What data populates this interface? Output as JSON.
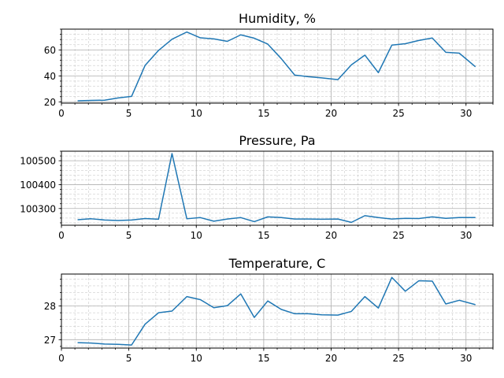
{
  "chart_data": [
    {
      "type": "line",
      "title": "Humidity, %",
      "xlim": [
        0,
        32
      ],
      "ylim": [
        19,
        76
      ],
      "x_ticks": [
        0,
        5,
        10,
        15,
        20,
        25,
        30
      ],
      "y_ticks": [
        20,
        40,
        60
      ],
      "grid": true,
      "color": "#1f77b4",
      "x": [
        1.2,
        2.2,
        3.2,
        4.2,
        5.2,
        6.2,
        7.2,
        8.2,
        9.3,
        10.3,
        11.3,
        12.3,
        13.3,
        14.3,
        15.3,
        16.3,
        17.3,
        18.3,
        19.3,
        20.5,
        21.5,
        22.5,
        23.5,
        24.5,
        25.5,
        26.5,
        27.5,
        28.5,
        29.5,
        30.7
      ],
      "y": [
        20.8,
        21.1,
        21.3,
        23,
        24.2,
        48,
        59.6,
        68.2,
        73.8,
        69.3,
        68.5,
        66.6,
        71.6,
        69,
        64.5,
        53.3,
        40.6,
        39.4,
        38.5,
        37.1,
        48.5,
        56,
        42.5,
        63.7,
        64.8,
        67.3,
        69.2,
        58.2,
        57.5,
        47
      ]
    },
    {
      "type": "line",
      "title": "Pressure, Pa",
      "xlim": [
        0,
        32
      ],
      "ylim": [
        100230,
        100540
      ],
      "x_ticks": [
        0,
        5,
        10,
        15,
        20,
        25,
        30
      ],
      "y_ticks": [
        100300,
        100400,
        100500
      ],
      "grid": true,
      "color": "#1f77b4",
      "x": [
        1.2,
        2.2,
        3.2,
        4.2,
        5.2,
        6.2,
        7.2,
        8.2,
        9.3,
        10.3,
        11.3,
        12.3,
        13.3,
        14.3,
        15.3,
        16.3,
        17.3,
        18.3,
        19.3,
        20.5,
        21.5,
        22.5,
        23.5,
        24.5,
        25.5,
        26.5,
        27.5,
        28.5,
        29.5,
        30.7
      ],
      "y": [
        100253,
        100257,
        100252,
        100250,
        100252,
        100258,
        100255,
        100530,
        100257,
        100262,
        100247,
        100256,
        100262,
        100245,
        100265,
        100262,
        100256,
        100256,
        100255,
        100256,
        100242,
        100270,
        100262,
        100256,
        100259,
        100258,
        100265,
        100259,
        100262,
        100262
      ]
    },
    {
      "type": "line",
      "title": "Temperature, C",
      "xlim": [
        0,
        32
      ],
      "ylim": [
        26.75,
        28.95
      ],
      "x_ticks": [
        0,
        5,
        10,
        15,
        20,
        25,
        30
      ],
      "y_ticks": [
        27,
        28
      ],
      "grid": true,
      "color": "#1f77b4",
      "x": [
        1.2,
        2.2,
        3.2,
        4.2,
        5.2,
        6.2,
        7.2,
        8.2,
        9.3,
        10.3,
        11.3,
        12.3,
        13.3,
        14.3,
        15.3,
        16.3,
        17.3,
        18.3,
        19.3,
        20.5,
        21.5,
        22.5,
        23.5,
        24.5,
        25.5,
        26.5,
        27.5,
        28.5,
        29.5,
        30.7
      ],
      "y": [
        26.91,
        26.9,
        26.87,
        26.86,
        26.84,
        27.46,
        27.8,
        27.85,
        28.28,
        28.19,
        27.95,
        28.01,
        28.36,
        27.66,
        28.15,
        27.9,
        27.77,
        27.77,
        27.74,
        27.73,
        27.84,
        28.28,
        27.94,
        28.85,
        28.44,
        28.75,
        28.74,
        28.06,
        28.17,
        28.04
      ]
    }
  ]
}
